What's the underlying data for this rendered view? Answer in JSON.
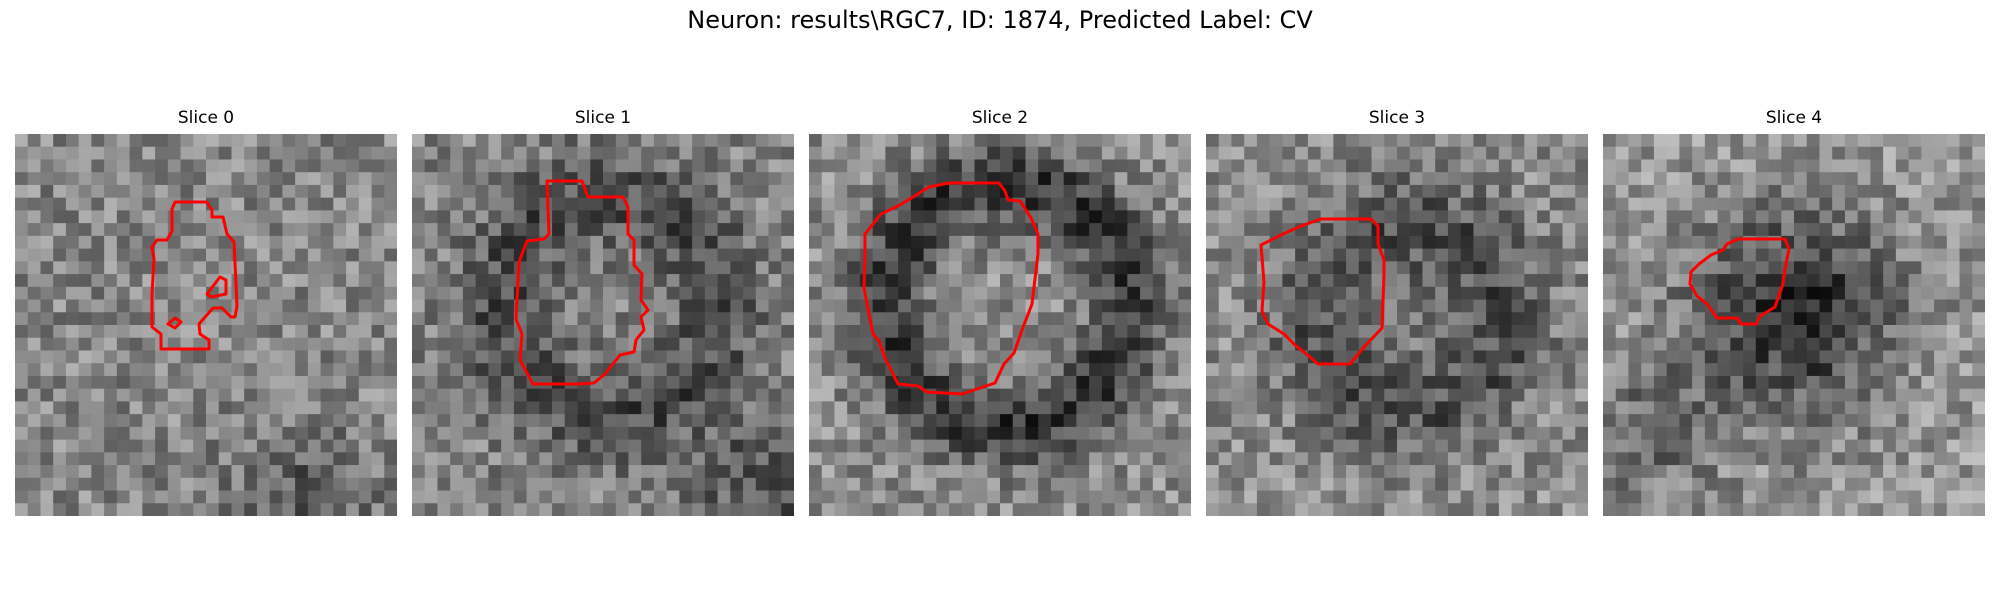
{
  "figure": {
    "title": "Neuron: results\\RGC7, ID: 1874, Predicted Label: CV"
  },
  "panels": [
    {
      "title": "Slice 0"
    },
    {
      "title": "Slice 1"
    },
    {
      "title": "Slice 2"
    },
    {
      "title": "Slice 3"
    },
    {
      "title": "Slice 4"
    }
  ],
  "colors": {
    "contour": "#ff0000",
    "background": "#ffffff"
  }
}
